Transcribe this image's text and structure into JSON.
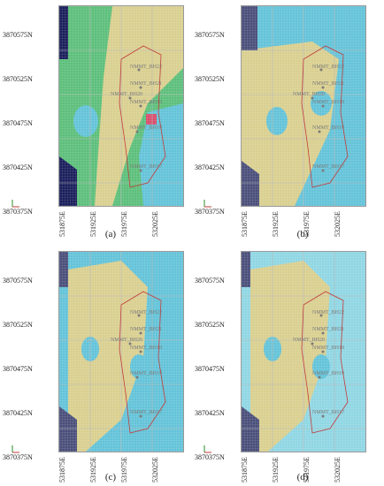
{
  "panels": [
    {
      "caption": "(a)",
      "y_labels": [
        "3870575N",
        "3870525N",
        "3870475N",
        "3870425N",
        "3870375N"
      ],
      "x_labels": [
        "531875E",
        "531925E",
        "531975E",
        "532025E"
      ]
    },
    {
      "caption": "(b)",
      "y_labels": [
        "3870575N",
        "3870525N",
        "3870475N",
        "3870425N",
        "3870375N"
      ],
      "x_labels": [
        "531875E",
        "531925E",
        "531975E",
        "532025E"
      ]
    },
    {
      "caption": "(c)",
      "y_labels": [
        "3870575N",
        "3870525N",
        "3870475N",
        "3870425N",
        "3870375N"
      ],
      "x_labels": [
        "531875E",
        "531925E",
        "531975E",
        "532025E"
      ]
    },
    {
      "caption": "(d)",
      "y_labels": [
        "3870575N",
        "3870525N",
        "3870475N",
        "3870425N",
        "3870375N"
      ],
      "x_labels": [
        "531875E",
        "531925E",
        "531975E",
        "532025E"
      ]
    }
  ],
  "boreholes": [
    "NMMT_BH22",
    "NMMT_BH21",
    "NMMT_BH20",
    "NMMT_BH18",
    "NMMT_BH19",
    "NMMT_BH17"
  ],
  "colors": {
    "dark_navy": "#1b1f5c",
    "muted_navy": "#4a4f7a",
    "green": "#5cbf7a",
    "khaki": "#d9cf8f",
    "cyan": "#63c3d8",
    "light_cyan": "#8fd6e3",
    "boundary": "#c23b3b"
  }
}
